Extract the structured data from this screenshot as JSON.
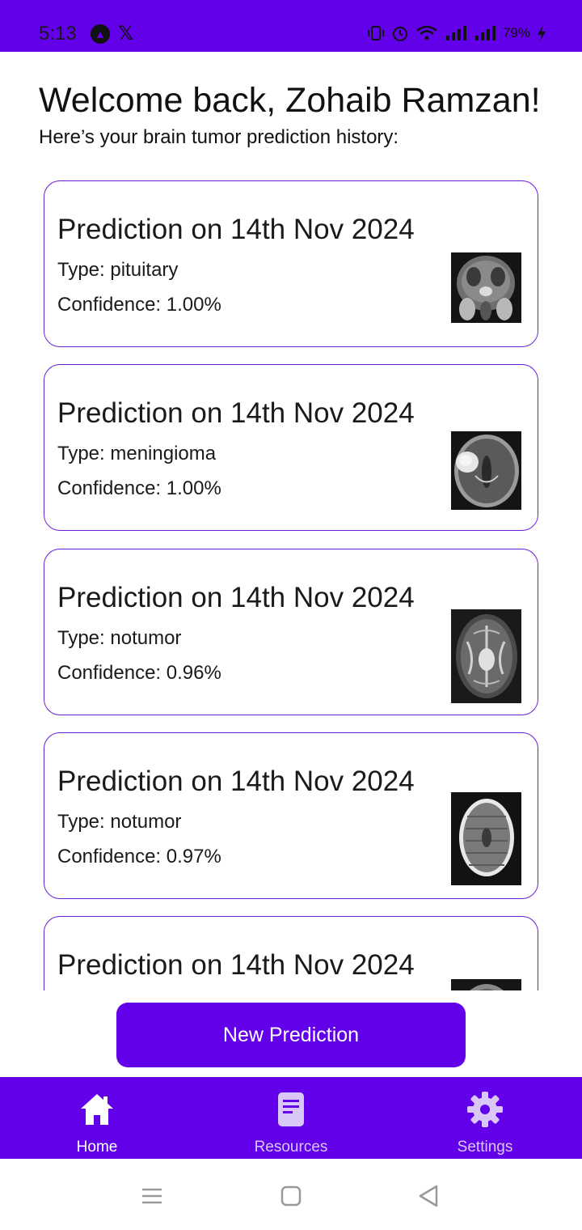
{
  "status_bar": {
    "time": "5:13",
    "battery": "79%",
    "accent": "#6200ea"
  },
  "header": {
    "welcome": "Welcome back, Zohaib Ramzan!",
    "subtitle": "Here’s your brain tumor prediction history:"
  },
  "predictions": [
    {
      "title": "Prediction on 14th Nov 2024",
      "type": "Type: pituitary",
      "confidence": "Confidence: 1.00%"
    },
    {
      "title": "Prediction on 14th Nov 2024",
      "type": "Type: meningioma",
      "confidence": "Confidence: 1.00%"
    },
    {
      "title": "Prediction on 14th Nov 2024",
      "type": "Type: notumor",
      "confidence": "Confidence: 0.96%"
    },
    {
      "title": "Prediction on 14th Nov 2024",
      "type": "Type: notumor",
      "confidence": "Confidence: 0.97%"
    },
    {
      "title": "Prediction on 14th Nov 2024"
    }
  ],
  "actions": {
    "new_prediction": "New Prediction"
  },
  "bottom_nav": {
    "home": "Home",
    "resources": "Resources",
    "settings": "Settings",
    "active": "home"
  },
  "icons": {
    "home": "home-icon",
    "resources": "document-icon",
    "settings": "gear-icon",
    "thumbnail": "mri-scan-image"
  }
}
